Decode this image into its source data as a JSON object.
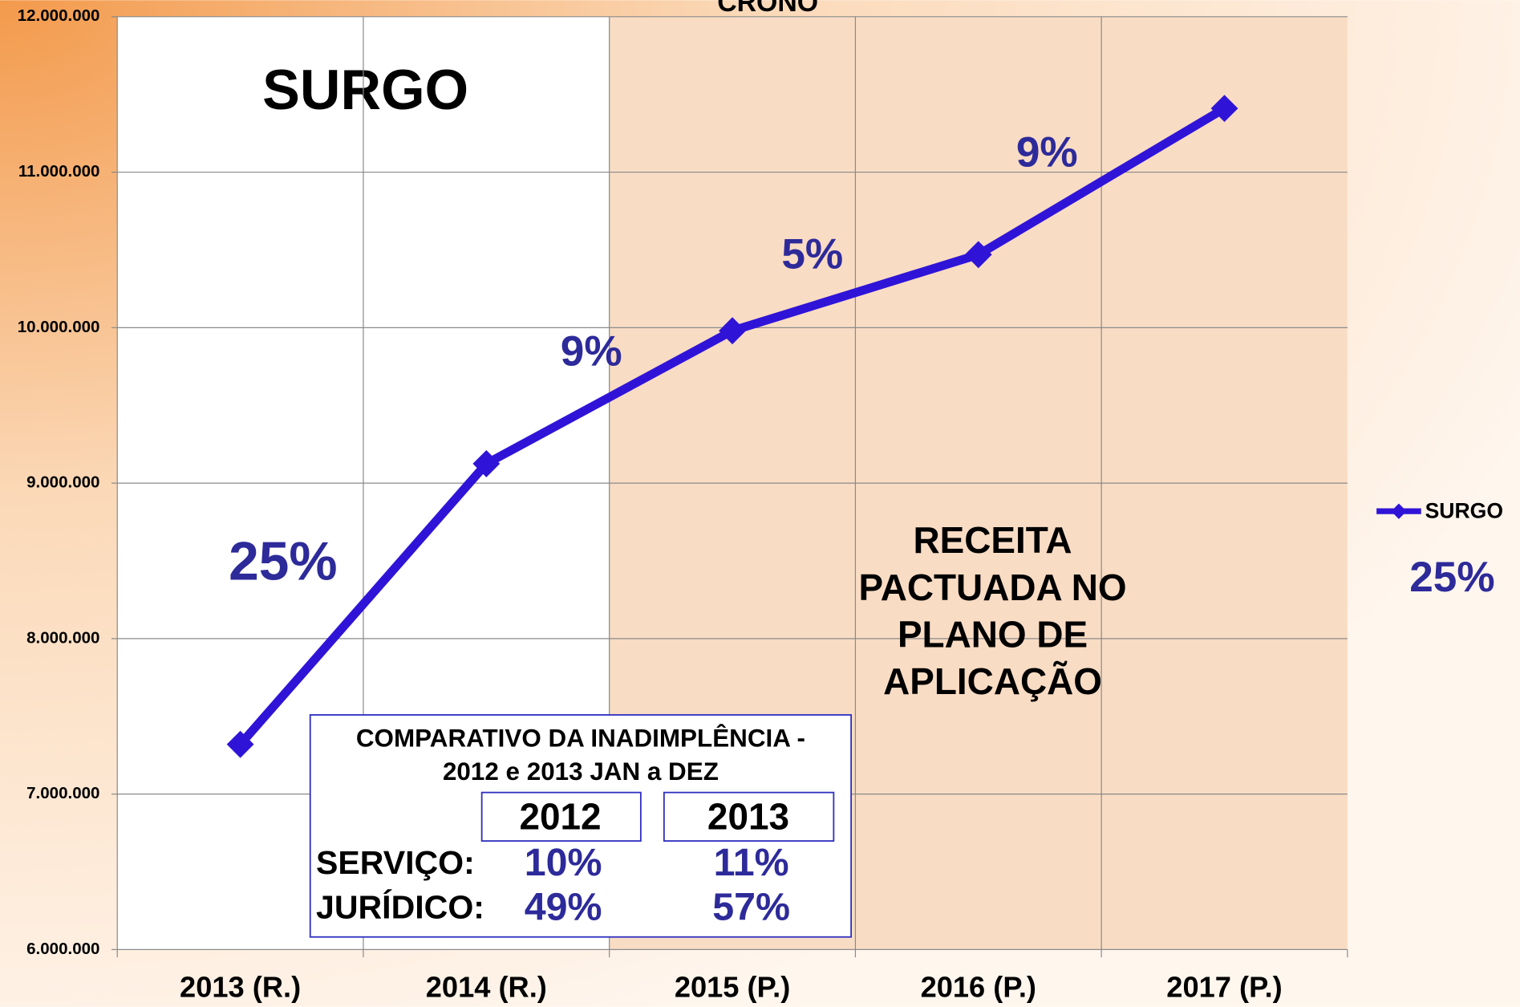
{
  "chart_data": {
    "type": "line",
    "title": "CRONO",
    "categories": [
      "2013 (R.)",
      "2014 (R.)",
      "2015 (P.)",
      "2016 (P.)",
      "2017 (P.)"
    ],
    "series": [
      {
        "name": "SURGO",
        "color": "#2f14d8",
        "values": [
          7320000,
          9125000,
          9980000,
          10470000,
          11410000
        ]
      }
    ],
    "ylim": [
      6000000,
      12000000
    ],
    "yticks": [
      {
        "value": 6000000,
        "label": "6.000.000"
      },
      {
        "value": 7000000,
        "label": "7.000.000"
      },
      {
        "value": 8000000,
        "label": "8.000.000"
      },
      {
        "value": 9000000,
        "label": "9.000.000"
      },
      {
        "value": 10000000,
        "label": "10.000.000"
      },
      {
        "value": 11000000,
        "label": "11.000.000"
      },
      {
        "value": 12000000,
        "label": "12.000.000"
      }
    ],
    "grid": true,
    "legend": "right",
    "plot_label": "SURGO",
    "growth_labels": [
      "25%",
      "9%",
      "5%",
      "9%"
    ],
    "projection_note": [
      "RECEITA",
      "PACTUADA NO",
      "PLANO DE",
      "APLICAÇÃO"
    ],
    "legend_note": "25%",
    "inset_table": {
      "title": [
        "COMPARATIVO DA INADIMPLÊNCIA -",
        "2012 e 2013 JAN a DEZ"
      ],
      "columns": [
        "2012",
        "2013"
      ],
      "rows": [
        {
          "label": "SERVIÇO:",
          "values": [
            "10%",
            "11%"
          ]
        },
        {
          "label": "JURÍDICO:",
          "values": [
            "49%",
            "57%"
          ]
        }
      ]
    }
  }
}
